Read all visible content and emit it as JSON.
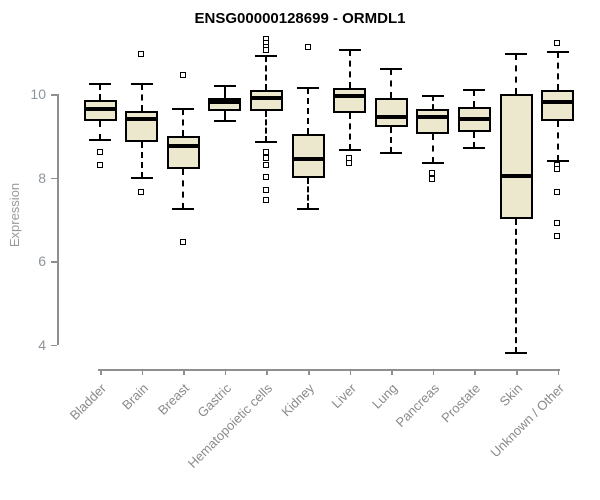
{
  "colors": {
    "background": "#ffffff",
    "box_fill": "#ece8cd",
    "box_border": "#000000",
    "axis_line": "#8f8f8f",
    "axis_text": "#8e949c",
    "category_text": "#8a8a8a",
    "title_text": "#000000"
  },
  "chart_data": {
    "type": "boxplot",
    "title": "ENSG00000128699 - ORMDL1",
    "xlabel": "",
    "ylabel": "Expression",
    "yticks": [
      4,
      6,
      8,
      10
    ],
    "ylim": [
      3.5,
      11.4
    ],
    "grid": false,
    "legend": false,
    "categories": [
      "Bladder",
      "Brain",
      "Breast",
      "Gastric",
      "Hematopoietic cells",
      "Kidney",
      "Liver",
      "Lung",
      "Pancreas",
      "Prostate",
      "Skin",
      "Unknown / Other"
    ],
    "series": [
      {
        "category": "Bladder",
        "whisker_low": 8.9,
        "q1": 9.35,
        "median": 9.65,
        "q3": 9.85,
        "whisker_high": 10.25,
        "outliers": [
          8.6,
          8.3
        ]
      },
      {
        "category": "Brain",
        "whisker_low": 8.0,
        "q1": 8.85,
        "median": 9.4,
        "q3": 9.6,
        "whisker_high": 10.25,
        "outliers": [
          10.95,
          7.65
        ]
      },
      {
        "category": "Breast",
        "whisker_low": 7.25,
        "q1": 8.2,
        "median": 8.75,
        "q3": 9.0,
        "whisker_high": 9.65,
        "outliers": [
          10.45,
          6.45
        ]
      },
      {
        "category": "Gastric",
        "whisker_low": 9.35,
        "q1": 9.6,
        "median": 9.8,
        "q3": 9.9,
        "whisker_high": 10.2,
        "outliers": []
      },
      {
        "category": "Hematopoietic cells",
        "whisker_low": 8.85,
        "q1": 9.6,
        "median": 9.9,
        "q3": 10.1,
        "whisker_high": 10.9,
        "outliers": [
          11.3,
          11.2,
          11.1,
          11.05,
          8.6,
          8.45,
          8.3,
          8.0,
          7.7,
          7.45
        ]
      },
      {
        "category": "Kidney",
        "whisker_low": 7.25,
        "q1": 8.0,
        "median": 8.45,
        "q3": 9.05,
        "whisker_high": 10.15,
        "outliers": [
          11.1
        ]
      },
      {
        "category": "Liver",
        "whisker_low": 8.65,
        "q1": 9.55,
        "median": 9.95,
        "q3": 10.15,
        "whisker_high": 11.05,
        "outliers": [
          8.45,
          8.35
        ]
      },
      {
        "category": "Lung",
        "whisker_low": 8.6,
        "q1": 9.2,
        "median": 9.45,
        "q3": 9.9,
        "whisker_high": 10.6,
        "outliers": []
      },
      {
        "category": "Pancreas",
        "whisker_low": 8.35,
        "q1": 9.05,
        "median": 9.45,
        "q3": 9.65,
        "whisker_high": 9.95,
        "outliers": [
          8.1,
          7.95
        ]
      },
      {
        "category": "Prostate",
        "whisker_low": 8.7,
        "q1": 9.1,
        "median": 9.4,
        "q3": 9.7,
        "whisker_high": 10.1,
        "outliers": []
      },
      {
        "category": "Skin",
        "whisker_low": 3.8,
        "q1": 7.0,
        "median": 8.05,
        "q3": 10.0,
        "whisker_high": 10.95,
        "outliers": []
      },
      {
        "category": "Unknown / Other",
        "whisker_low": 8.4,
        "q1": 9.35,
        "median": 9.8,
        "q3": 10.1,
        "whisker_high": 11.0,
        "outliers": [
          11.2,
          8.3,
          8.2,
          7.65,
          6.9,
          6.6
        ]
      }
    ]
  }
}
